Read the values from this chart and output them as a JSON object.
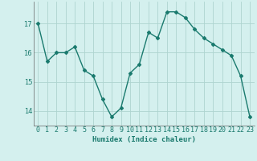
{
  "x": [
    0,
    1,
    2,
    3,
    4,
    5,
    6,
    7,
    8,
    9,
    10,
    11,
    12,
    13,
    14,
    15,
    16,
    17,
    18,
    19,
    20,
    21,
    22,
    23
  ],
  "y": [
    17.0,
    15.7,
    16.0,
    16.0,
    16.2,
    15.4,
    15.2,
    14.4,
    13.8,
    14.1,
    15.3,
    15.6,
    16.7,
    16.5,
    17.4,
    17.4,
    17.2,
    16.8,
    16.5,
    16.3,
    16.1,
    15.9,
    15.2,
    13.8
  ],
  "line_color": "#1a7a6e",
  "marker": "D",
  "markersize": 2.2,
  "linewidth": 1.0,
  "bg_color": "#d4f0ee",
  "grid_color": "#aed4d0",
  "xlabel": "Humidex (Indice chaleur)",
  "ylim": [
    13.5,
    17.75
  ],
  "yticks": [
    14,
    15,
    16,
    17
  ],
  "axis_fontsize": 6.5,
  "tick_fontsize": 6.0
}
